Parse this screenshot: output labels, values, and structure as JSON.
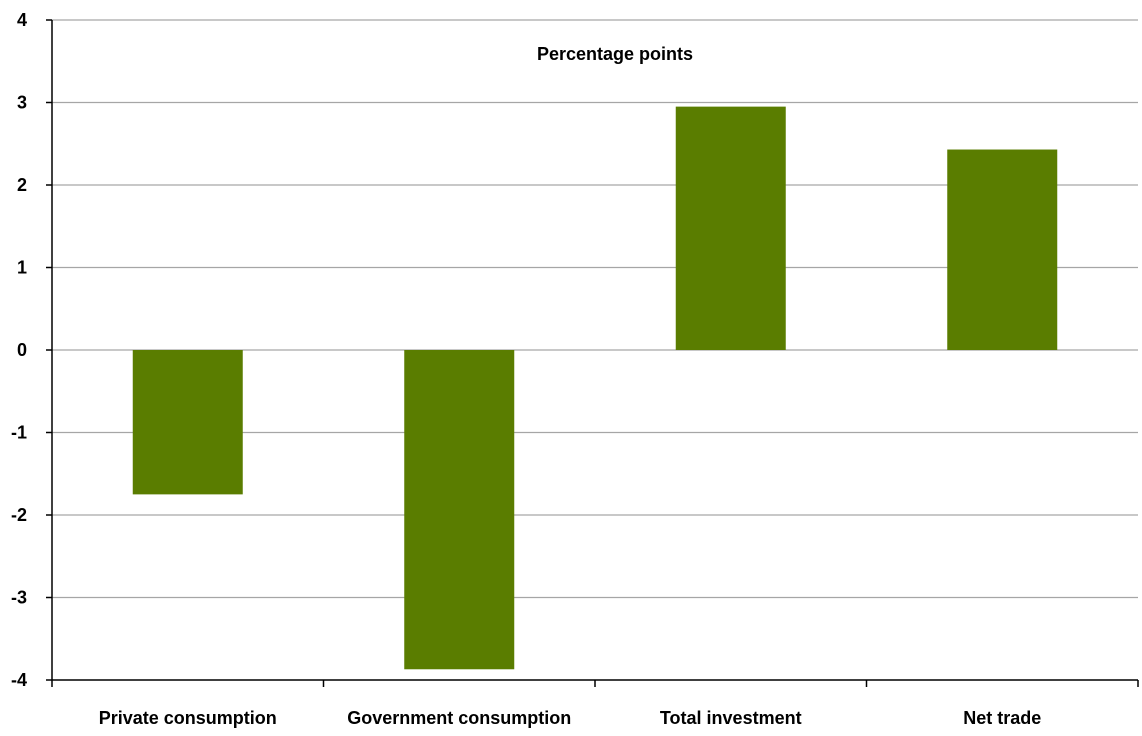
{
  "chart_data": {
    "type": "bar",
    "title": "Percentage points",
    "xlabel": "",
    "ylabel": "",
    "categories": [
      "Private consumption",
      "Government consumption",
      "Total investment",
      "Net trade"
    ],
    "values": [
      -1.75,
      -3.87,
      2.95,
      2.43
    ],
    "ylim": [
      -4,
      4
    ],
    "yticks": [
      "4",
      "3",
      "2",
      "1",
      "0",
      "-1",
      "-2",
      "-3",
      "-4"
    ],
    "grid": true,
    "legend": "none",
    "colors": {
      "bar": "#5a7d00",
      "grid": "#a6a6a6",
      "axis": "#000000"
    }
  }
}
